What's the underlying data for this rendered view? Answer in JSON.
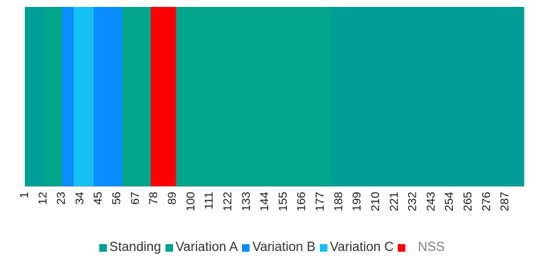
{
  "chart_data": {
    "type": "bar",
    "x_ticks": [
      "1",
      "12",
      "23",
      "34",
      "45",
      "56",
      "67",
      "78",
      "89",
      "100",
      "111",
      "122",
      "133",
      "144",
      "155",
      "166",
      "177",
      "188",
      "199",
      "210",
      "221",
      "232",
      "243",
      "254",
      "265",
      "276",
      "287"
    ],
    "x_range": [
      1,
      298
    ],
    "segments": [
      {
        "start": 1,
        "end": 12,
        "category": "Standing"
      },
      {
        "start": 12,
        "end": 23,
        "category": "Variation A"
      },
      {
        "start": 23,
        "end": 30,
        "category": "Variation B"
      },
      {
        "start": 30,
        "end": 42,
        "category": "Variation C"
      },
      {
        "start": 42,
        "end": 59,
        "category": "Variation B"
      },
      {
        "start": 59,
        "end": 76,
        "category": "Variation A"
      },
      {
        "start": 76,
        "end": 91,
        "category": "NSS"
      },
      {
        "start": 91,
        "end": 183,
        "category": "Variation A"
      },
      {
        "start": 183,
        "end": 298,
        "category": "Standing"
      }
    ],
    "legend": [
      {
        "label": "Standing",
        "color": "#009e96"
      },
      {
        "label": "Variation A",
        "color": "#00a58a"
      },
      {
        "label": "Variation B",
        "color": "#0a8dff"
      },
      {
        "label": "Variation C",
        "color": "#17c0f5"
      },
      {
        "label": "NSS",
        "color": "#ff0000"
      }
    ],
    "legend_position": "bottom",
    "grid": false
  }
}
